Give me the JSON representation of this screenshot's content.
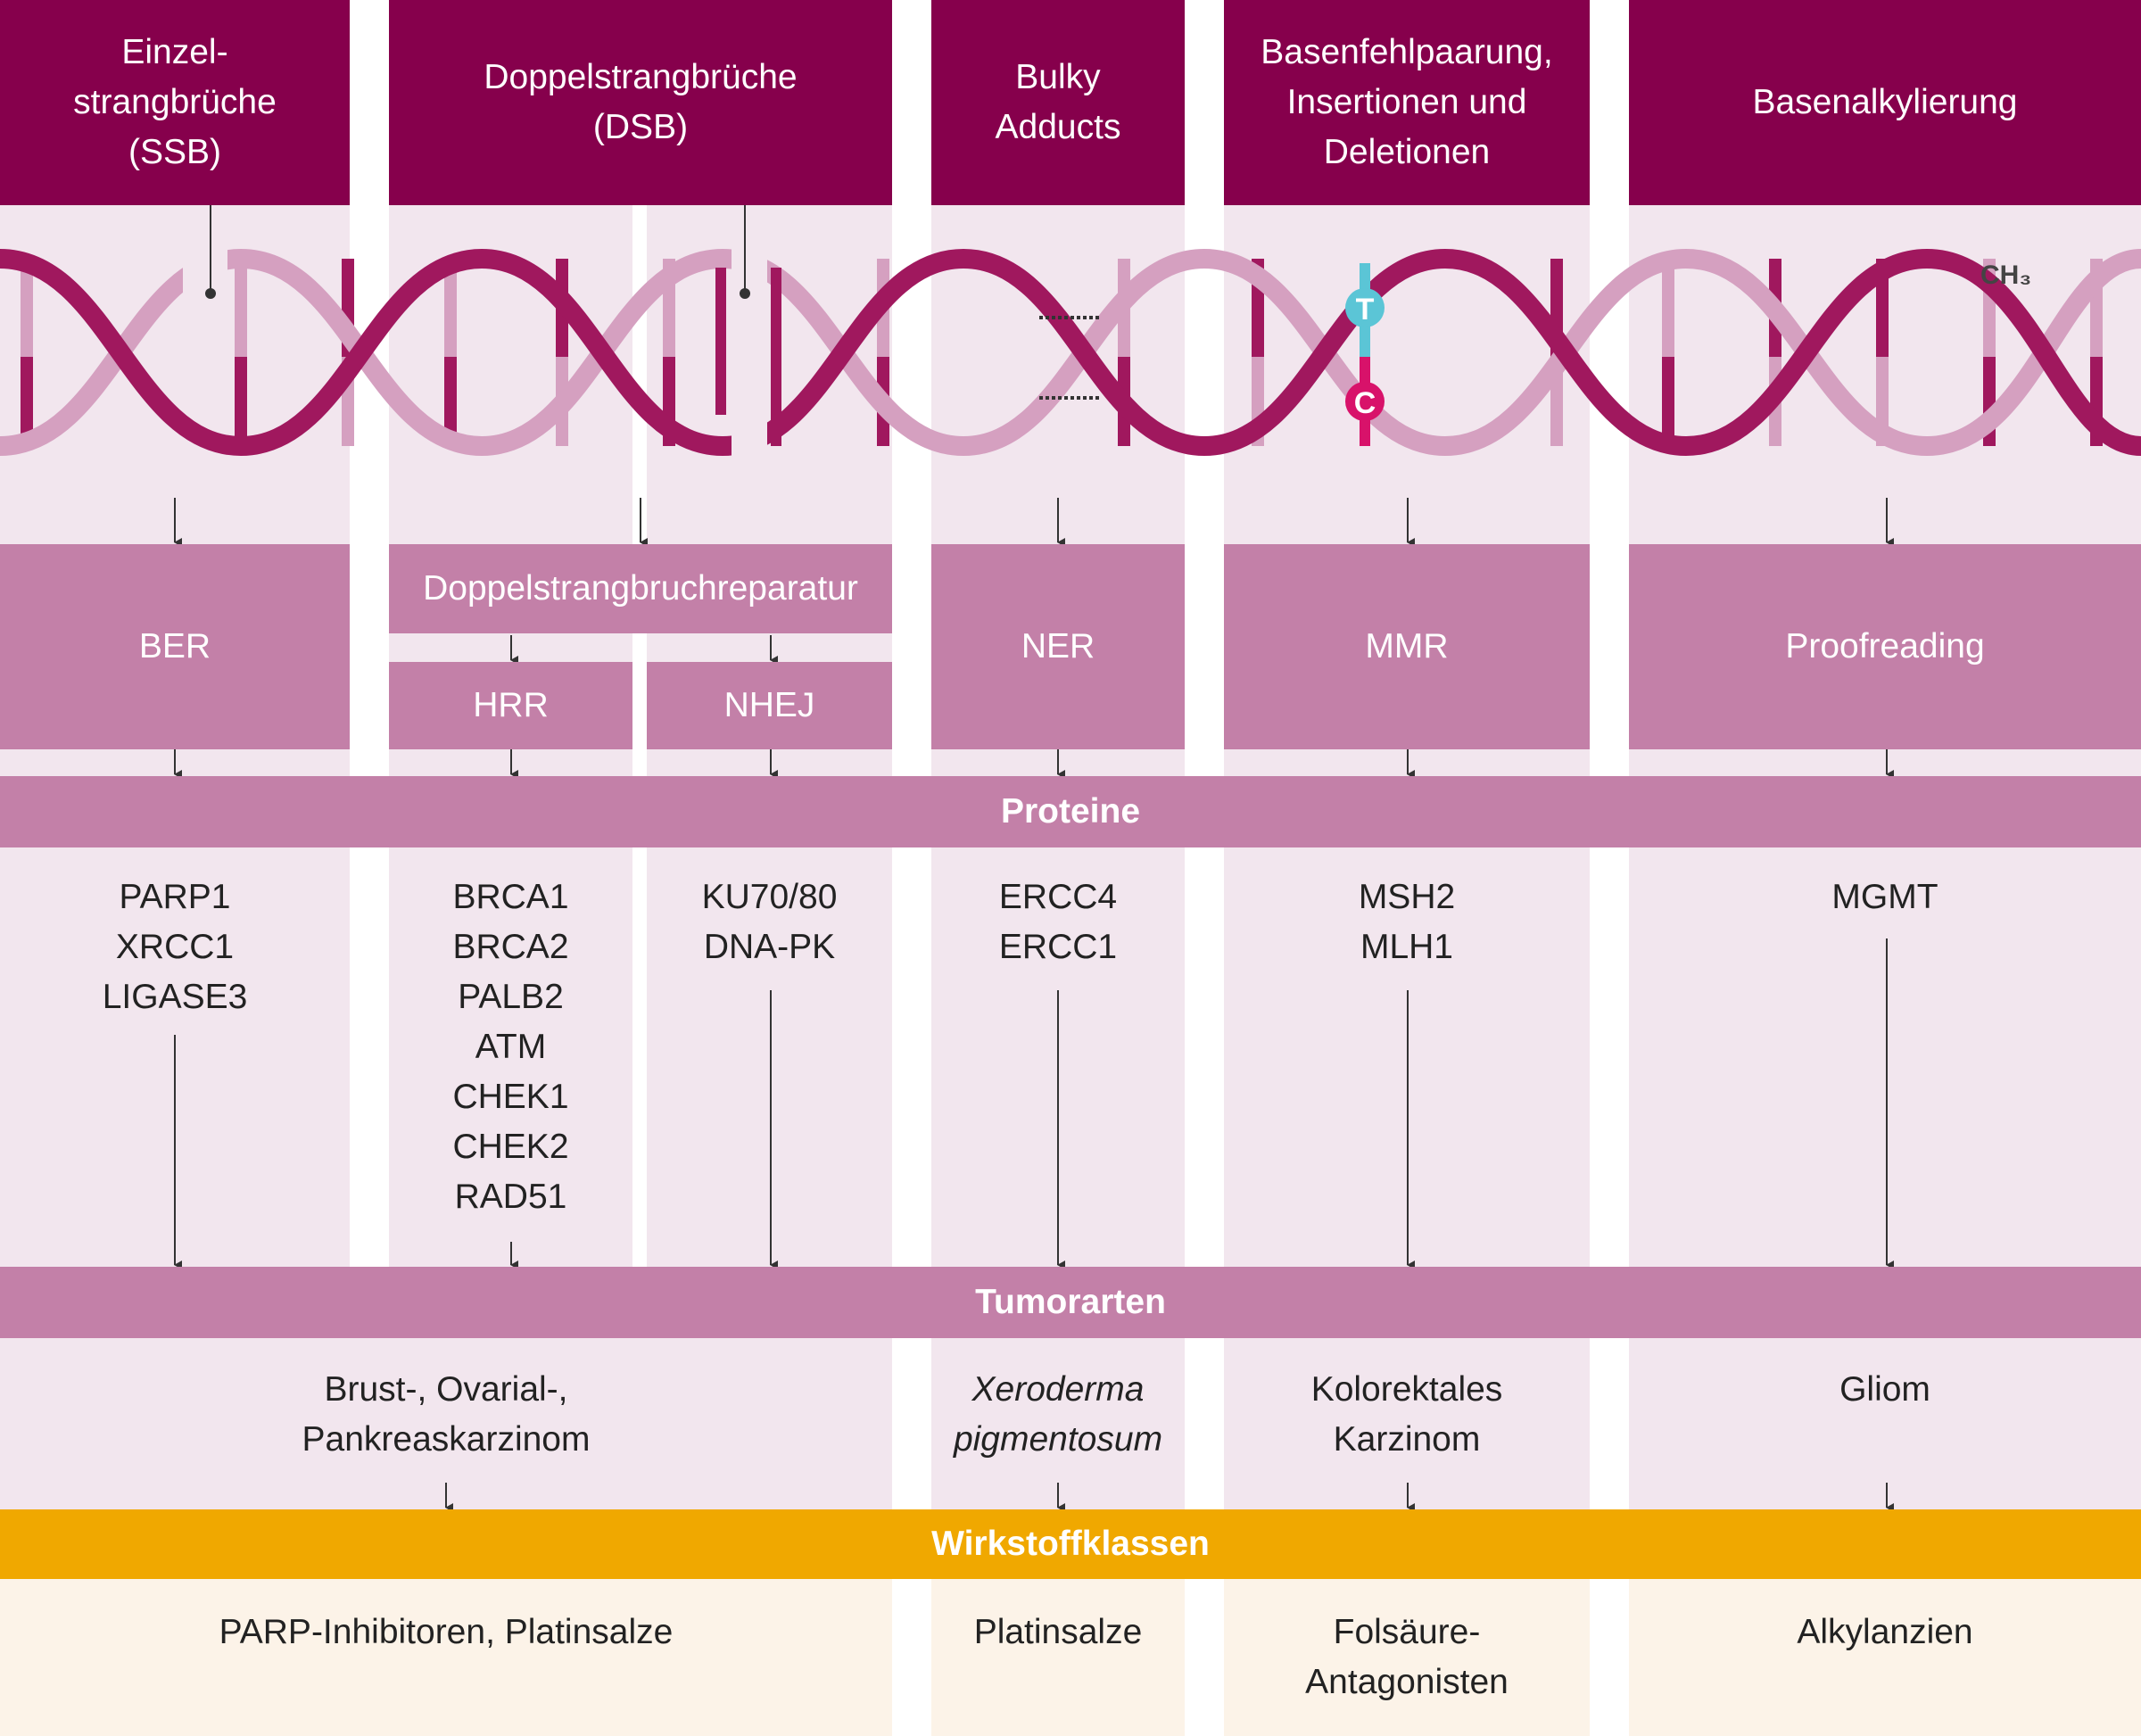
{
  "colors": {
    "header": "#86004c",
    "repair": "#c380a8",
    "column_bg": "#f2e6ee",
    "bottom_bg": "#fcf3e8",
    "band_accent": "#f0a800",
    "strand_dark": "#a0185e",
    "strand_light": "#d5a0c0",
    "base_T": "#5bc5d6",
    "base_C": "#d8126a"
  },
  "damage_types": [
    "Einzel-\nstrangbrüche\n(SSB)",
    "Doppelstrangbrüche\n(DSB)",
    "Bulky\nAdducts",
    "Basenfehlpaarung,\nInsertionen und\nDeletionen",
    "Basenalkylierung"
  ],
  "dna_labels": {
    "t": "T",
    "c": "C",
    "methyl": "CH₃"
  },
  "repair": {
    "ber": "BER",
    "dsb_repair": "Doppelstrangbruchreparatur",
    "hrr": "HRR",
    "nhej": "NHEJ",
    "ner": "NER",
    "mmr": "MMR",
    "proofreading": "Proofreading"
  },
  "bands": {
    "proteins": "Proteine",
    "tumors": "Tumorarten",
    "drug_classes": "Wirkstoffklassen"
  },
  "proteins": {
    "ber": "PARP1\nXRCC1\nLIGASE3",
    "hrr": "BRCA1\nBRCA2\nPALB2\nATM\nCHEK1\nCHEK2\nRAD51",
    "nhej": "KU70/80\nDNA-PK",
    "ner": "ERCC4\nERCC1",
    "mmr": "MSH2\nMLH1",
    "proofreading": "MGMT"
  },
  "tumors": {
    "breast": "Brust-, Ovarial-,\nPankreaskarzinom",
    "xeroderma": "Xeroderma\npigmentosum",
    "colorectal": "Kolorektales\nKarzinom",
    "glioma": "Gliom"
  },
  "drugs": {
    "parp": "PARP-Inhibitoren, Platinsalze",
    "platin": "Platinsalze",
    "folic": "Folsäure-\nAntagonisten",
    "alkyl": "Alkylanzien"
  }
}
